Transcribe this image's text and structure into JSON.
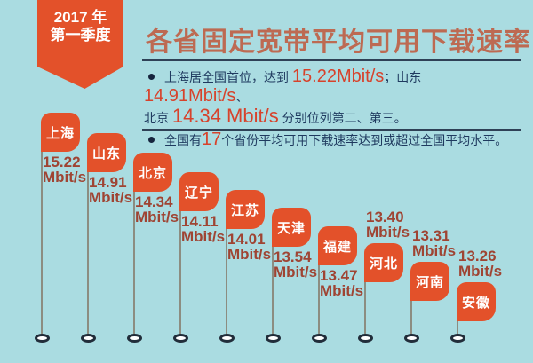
{
  "header": {
    "period_line1": "2017 年",
    "period_line2": "第一季度",
    "title": "各省固定宽带平均可用下载速率"
  },
  "insights": {
    "bullet1": {
      "seg0": "上海居全国首位，达到 ",
      "num1": "15.22Mbit/s",
      "seg1": "；山东 ",
      "num2": "14.91Mbit/s",
      "seg2": "、",
      "seg3": "北京 ",
      "num3": "14.34 Mbit/s",
      "seg4": " 分别位列第二、第三。"
    },
    "bullet2": {
      "seg0": "全国有",
      "num1": "17",
      "seg1": "个省份平均可用下载速率达到或超过全国平均水平。"
    }
  },
  "chart_data": {
    "type": "bar",
    "title": "各省固定宽带平均可用下载速率",
    "period": "2017 年第一季度",
    "unit": "Mbit/s",
    "categories": [
      "上海",
      "山东",
      "北京",
      "辽宁",
      "江苏",
      "天津",
      "福建",
      "河北",
      "河南",
      "安徽"
    ],
    "values": [
      15.22,
      14.91,
      14.34,
      14.11,
      14.01,
      13.54,
      13.47,
      13.4,
      13.31,
      13.26
    ],
    "legend": "none",
    "axes": "none",
    "items": [
      {
        "province": "上海",
        "value_label": "15.22"
      },
      {
        "province": "山东",
        "value_label": "14.91"
      },
      {
        "province": "北京",
        "value_label": "14.34"
      },
      {
        "province": "辽宁",
        "value_label": "14.11"
      },
      {
        "province": "江苏",
        "value_label": "14.01"
      },
      {
        "province": "天津",
        "value_label": "13.54"
      },
      {
        "province": "福建",
        "value_label": "13.47"
      },
      {
        "province": "河北",
        "value_label": "13.40"
      },
      {
        "province": "河南",
        "value_label": "13.31"
      },
      {
        "province": "安徽",
        "value_label": "13.26"
      }
    ]
  },
  "colors": {
    "background": "#aadce1",
    "accent_orange": "#e3512a",
    "title_text": "#bd6a52",
    "body_navy": "#1f3a5f",
    "number_red": "#d7422b",
    "value_maroon": "#9f4433"
  }
}
